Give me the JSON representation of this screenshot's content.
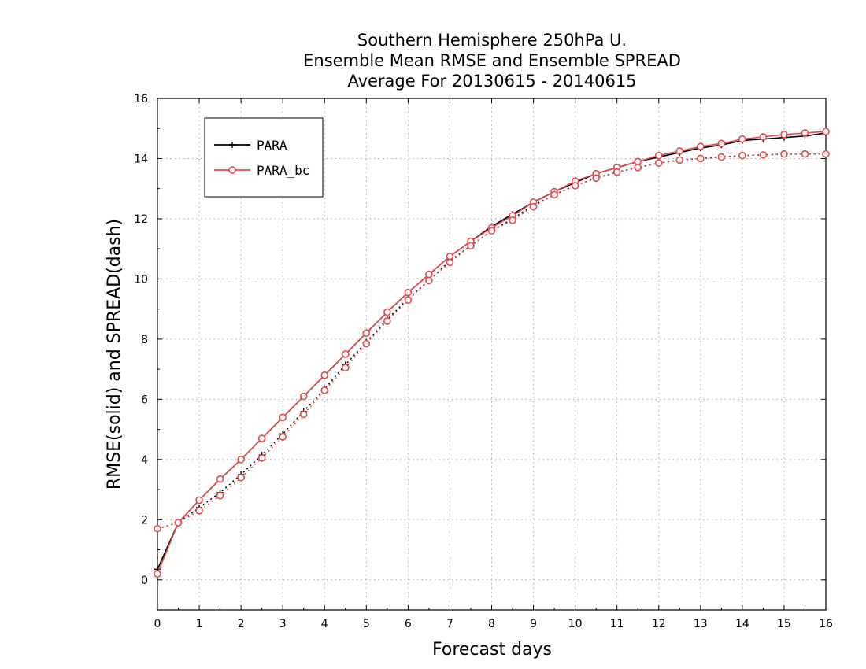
{
  "chart_data": {
    "type": "line",
    "title_lines": [
      "Southern Hemisphere 250hPa U.",
      "Ensemble Mean RMSE and Ensemble SPREAD",
      "Average For 20130615 - 20140615"
    ],
    "xlabel": "Forecast days",
    "ylabel": "RMSE(solid) and SPREAD(dash)",
    "xlim": [
      0,
      16
    ],
    "ylim": [
      -1,
      16
    ],
    "xticks": [
      0,
      1,
      2,
      3,
      4,
      5,
      6,
      7,
      8,
      9,
      10,
      11,
      12,
      13,
      14,
      15,
      16
    ],
    "yticks": [
      0,
      2,
      4,
      6,
      8,
      10,
      12,
      14,
      16
    ],
    "grid": true,
    "legend_position": "top-left",
    "x": [
      0,
      0.5,
      1,
      1.5,
      2,
      2.5,
      3,
      3.5,
      4,
      4.5,
      5,
      5.5,
      6,
      6.5,
      7,
      7.5,
      8,
      8.5,
      9,
      9.5,
      10,
      10.5,
      11,
      11.5,
      12,
      12.5,
      13,
      13.5,
      14,
      14.5,
      15,
      15.5,
      16
    ],
    "series": [
      {
        "name": "PARA",
        "color": "#000000",
        "marker": "plus",
        "rmse": [
          0.35,
          1.9,
          2.65,
          3.35,
          4.0,
          4.7,
          5.4,
          6.1,
          6.8,
          7.5,
          8.2,
          8.9,
          9.55,
          10.15,
          10.75,
          11.25,
          11.75,
          12.15,
          12.55,
          12.9,
          13.2,
          13.5,
          13.7,
          13.9,
          14.05,
          14.2,
          14.35,
          14.45,
          14.6,
          14.65,
          14.7,
          14.75,
          14.85
        ],
        "spread": [
          1.7,
          1.9,
          2.4,
          2.9,
          3.5,
          4.15,
          4.85,
          5.6,
          6.35,
          7.15,
          7.9,
          8.65,
          9.35,
          9.95,
          10.6,
          11.1,
          11.6,
          12.0,
          12.45,
          12.8,
          13.1,
          13.35,
          13.55,
          13.7,
          13.85,
          13.95,
          14.0,
          14.05,
          14.1,
          14.12,
          14.15,
          14.15,
          14.15
        ]
      },
      {
        "name": "PARA_bc",
        "color": "#e8474a",
        "marker": "circle",
        "rmse": [
          0.2,
          1.9,
          2.65,
          3.35,
          4.0,
          4.7,
          5.4,
          6.1,
          6.8,
          7.5,
          8.2,
          8.9,
          9.55,
          10.15,
          10.75,
          11.25,
          11.7,
          12.1,
          12.55,
          12.9,
          13.25,
          13.5,
          13.7,
          13.9,
          14.1,
          14.25,
          14.4,
          14.5,
          14.65,
          14.72,
          14.8,
          14.85,
          14.9
        ],
        "spread": [
          1.7,
          1.9,
          2.3,
          2.8,
          3.4,
          4.05,
          4.75,
          5.5,
          6.3,
          7.05,
          7.85,
          8.6,
          9.3,
          9.95,
          10.55,
          11.1,
          11.6,
          11.95,
          12.4,
          12.8,
          13.1,
          13.35,
          13.55,
          13.7,
          13.85,
          13.95,
          14.0,
          14.05,
          14.1,
          14.12,
          14.15,
          14.15,
          14.15
        ]
      }
    ]
  }
}
